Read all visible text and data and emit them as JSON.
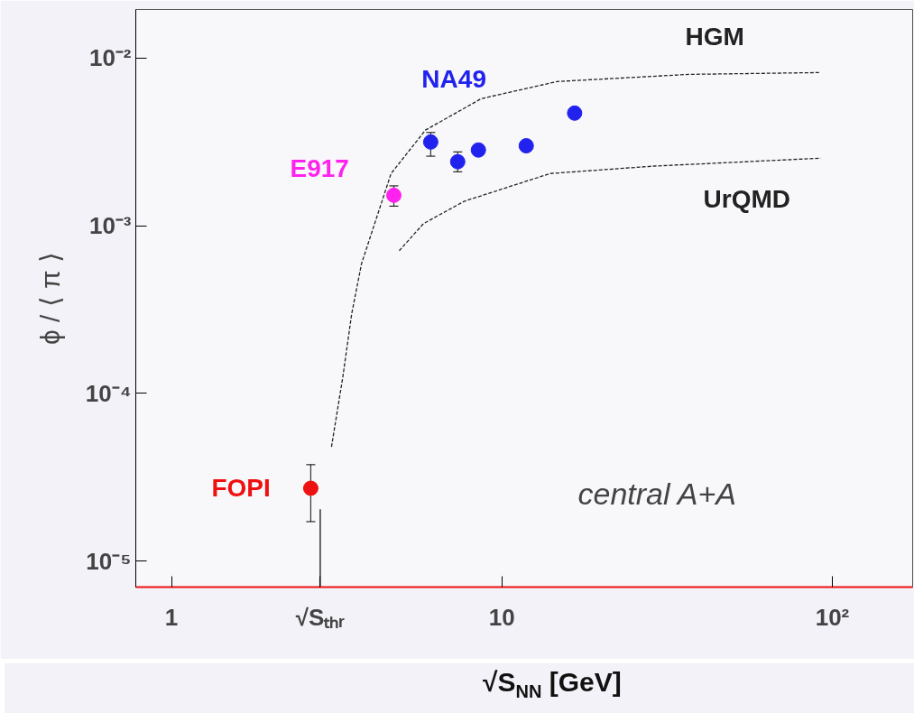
{
  "chart_data": {
    "type": "scatter",
    "xlabel": "√S$_{NN}$ [GeV]",
    "ylabel": "ϕ / ⟨ π ⟩",
    "log": "xy",
    "xlim": [
      0.78,
      175
    ],
    "ylim": [
      7e-06,
      0.0195
    ],
    "xticks": [
      1,
      {
        "value": 2.82,
        "label": "√Sₜₕᵣ"
      },
      10,
      {
        "value": 100,
        "label": "10²"
      }
    ],
    "yticks": [
      {
        "value": 1e-05,
        "label": "10⁻⁵"
      },
      {
        "value": 0.0001,
        "label": "10⁻⁴"
      },
      {
        "value": 0.001,
        "label": "10⁻³"
      },
      {
        "value": 0.01,
        "label": "10⁻²"
      }
    ],
    "grid": false,
    "legend": false,
    "marker": "circle",
    "series": [
      {
        "name": "FOPI",
        "color": "#ee1111",
        "x": [
          2.64
        ],
        "values": [
          2.72e-05
        ],
        "errors": [
          [
            1.72e-05,
            3.76e-05
          ]
        ]
      },
      {
        "name": "E917",
        "color": "#ff22ee",
        "x": [
          4.71
        ],
        "values": [
          0.00152
        ],
        "errors": [
          [
            0.00131,
            0.00173
          ]
        ]
      },
      {
        "name": "NA49",
        "color": "#2222ee",
        "x": [
          6.09,
          7.35,
          8.49,
          11.85,
          16.6
        ],
        "values": [
          0.00316,
          0.00241,
          0.00283,
          0.003,
          0.0047
        ],
        "errors": [
          [
            0.0026,
            0.0036
          ],
          [
            0.0021,
            0.00276
          ],
          null,
          null,
          null
        ]
      },
      {
        "name": "HGM",
        "type": "line",
        "marker": "none",
        "line_style": "dashed",
        "color": "#222222",
        "x": [
          3.05,
          3.3,
          3.51,
          3.76,
          4.62,
          5.87,
          8.66,
          14.7,
          36.9,
          92.2
        ],
        "values": [
          4.8e-05,
          0.000125,
          0.000297,
          0.000594,
          0.00205,
          0.00372,
          0.00573,
          0.00725,
          0.008,
          0.0082
        ]
      },
      {
        "name": "UrQMD",
        "type": "line",
        "marker": "none",
        "line_style": "dashed",
        "color": "#222222",
        "x": [
          4.89,
          5.79,
          7.69,
          14.0,
          28.9,
          92.2
        ],
        "values": [
          0.00071,
          0.00103,
          0.0014,
          0.00205,
          0.00227,
          0.00253
        ]
      }
    ],
    "ref_lines": [
      {
        "axis": "x",
        "value": 2.82,
        "label": null
      }
    ],
    "annotations": [
      "central A+A"
    ]
  }
}
